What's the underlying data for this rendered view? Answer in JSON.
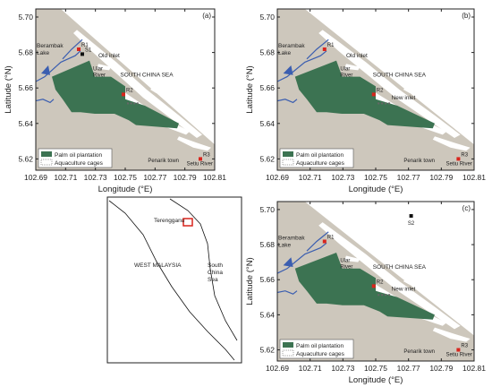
{
  "colors": {
    "land": "#cdc7bc",
    "water": "#ffffff",
    "plantation": "#3c7352",
    "river": "#3b5eb0",
    "station": "#d9251d",
    "station_black": "#111111",
    "frame": "#222222",
    "locator_box": "#d9251d"
  },
  "map_panels": [
    {
      "id": "a",
      "panel_label": "(a)",
      "ylabel": "Latitude (°N)",
      "xlabel": "Longitude (°E)",
      "y_ticks": [
        "5.70",
        "5.68",
        "5.66",
        "5.64",
        "5.62"
      ],
      "x_ticks": [
        "102.69",
        "102.71",
        "102.73",
        "102.75",
        "102.77",
        "102.79",
        "102.81"
      ],
      "labels": {
        "lake": "Berambak\nLake",
        "river": "Ular\nRiver",
        "inlet": "Old inlet",
        "sea": "SOUTH CHINA SEA",
        "town": "Penarik town",
        "river2": "Setiu River"
      },
      "stations": [
        {
          "name": "R1",
          "color": "red"
        },
        {
          "name": "S1",
          "color": "black"
        },
        {
          "name": "R2",
          "color": "red"
        },
        {
          "name": "R3",
          "color": "red"
        }
      ],
      "legend": [
        "Palm oil plantation",
        "Aquaculture cages"
      ]
    },
    {
      "id": "b",
      "panel_label": "(b)",
      "ylabel": "Latitude (°N)",
      "xlabel": "Longitude (°E)",
      "y_ticks": [
        "5.70",
        "5.68",
        "5.66",
        "5.64",
        "5.62"
      ],
      "x_ticks": [
        "102.69",
        "102.71",
        "102.73",
        "102.75",
        "102.77",
        "102.79",
        "102.81"
      ],
      "labels": {
        "lake": "Berambak\nLake",
        "river": "Ular\nRiver",
        "inlet": "Old inlet",
        "inlet2": "New inlet",
        "sea": "SOUTH CHINA SEA",
        "town": "Penarik town",
        "river2": "Setiu River"
      },
      "stations": [
        {
          "name": "R1",
          "color": "red"
        },
        {
          "name": "R2",
          "color": "red"
        },
        {
          "name": "R3",
          "color": "red"
        }
      ],
      "legend": [
        "Palm oil plantation",
        "Aquaculture cages"
      ]
    },
    {
      "id": "c",
      "panel_label": "(c)",
      "ylabel": "Latitude (°N)",
      "xlabel": "Longitude (°E)",
      "y_ticks": [
        "5.70",
        "5.68",
        "5.66",
        "5.64",
        "5.62"
      ],
      "x_ticks": [
        "102.69",
        "102.71",
        "102.73",
        "102.75",
        "102.77",
        "102.79",
        "102.81"
      ],
      "labels": {
        "lake": "Berambak\nLake",
        "river": "Ular\nRiver",
        "inlet2": "New inlet",
        "sea": "SOUTH CHINA SEA",
        "town": "Penarik town",
        "river2": "Setiu River"
      },
      "stations": [
        {
          "name": "R1",
          "color": "red"
        },
        {
          "name": "S2",
          "color": "black"
        },
        {
          "name": "R2",
          "color": "red"
        },
        {
          "name": "R3",
          "color": "red"
        }
      ],
      "legend": [
        "Palm oil plantation",
        "Aquaculture cages"
      ]
    }
  ],
  "locator": {
    "region": "WEST MALAYSIA",
    "state": "Terengganu",
    "sea": "South\nChina\nSea"
  }
}
